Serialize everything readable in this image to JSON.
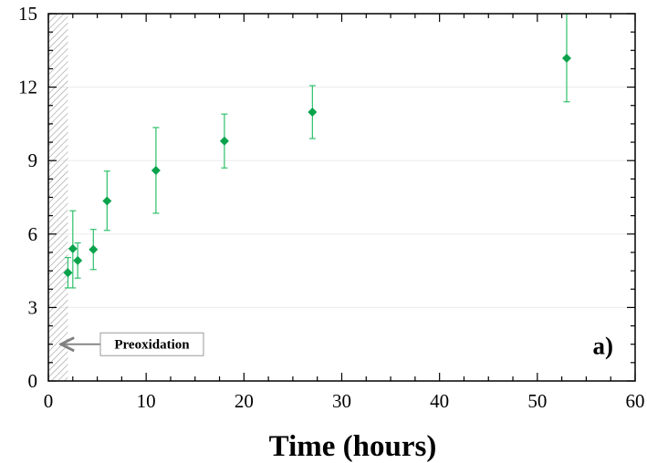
{
  "chart_data": {
    "type": "scatter",
    "title": "",
    "xlabel": "Time (hours)",
    "ylabel": "",
    "xlim": [
      0,
      60
    ],
    "ylim": [
      0,
      15
    ],
    "x_ticks": [
      0,
      10,
      20,
      30,
      40,
      50,
      60
    ],
    "y_ticks": [
      0,
      3,
      6,
      9,
      12,
      15
    ],
    "grid": true,
    "panel_label": "a)",
    "shaded_region": {
      "x_start": 0,
      "x_end": 2
    },
    "annotation": {
      "text": "Preoxidation",
      "arrow_to_x": 1.1,
      "y": 1.5
    },
    "colors": {
      "marker": "#0aa34c",
      "errorbar": "#2ec06a",
      "hatch": "#9a9a9a",
      "arrow": "#808080"
    },
    "series": [
      {
        "points": [
          {
            "x": 2.0,
            "y": 4.42,
            "err_low": 0.62,
            "err_high": 0.62
          },
          {
            "x": 2.5,
            "y": 5.4,
            "err_low": 1.6,
            "err_high": 1.55
          },
          {
            "x": 3.0,
            "y": 4.92,
            "err_low": 0.72,
            "err_high": 0.72
          },
          {
            "x": 4.6,
            "y": 5.37,
            "err_low": 0.82,
            "err_high": 0.82
          },
          {
            "x": 6.0,
            "y": 7.35,
            "err_low": 1.2,
            "err_high": 1.22
          },
          {
            "x": 11.0,
            "y": 8.6,
            "err_low": 1.75,
            "err_high": 1.75
          },
          {
            "x": 18.0,
            "y": 9.8,
            "err_low": 1.1,
            "err_high": 1.1
          },
          {
            "x": 27.0,
            "y": 10.98,
            "err_low": 1.08,
            "err_high": 1.08
          },
          {
            "x": 53.0,
            "y": 13.18,
            "err_low": 1.78,
            "err_high": 1.82
          }
        ]
      }
    ]
  }
}
